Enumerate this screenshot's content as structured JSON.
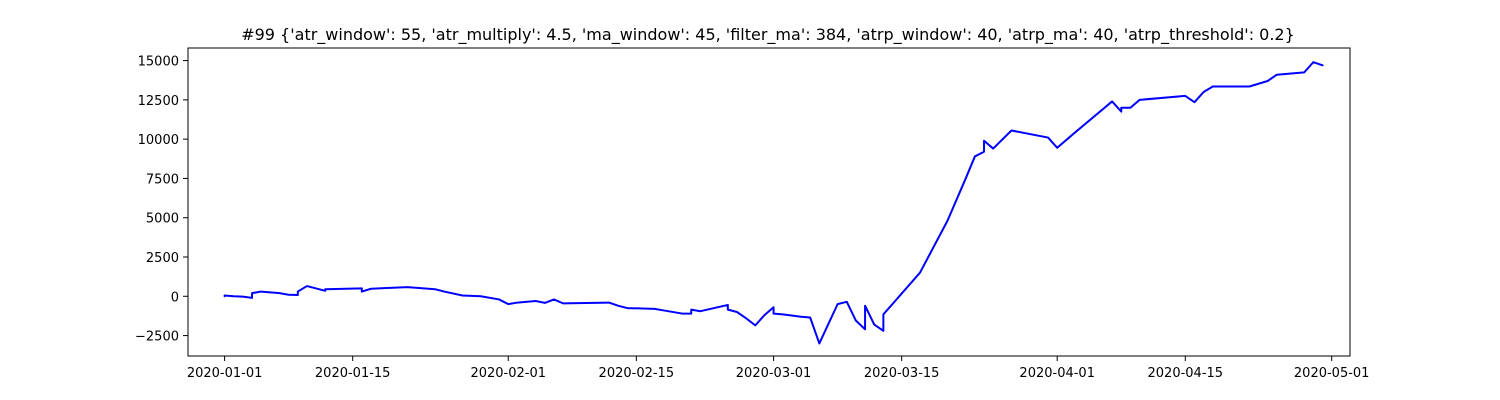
{
  "chart_data": {
    "type": "line",
    "title": "#99 {'atr_window': 55, 'atr_multiply': 4.5, 'ma_window': 45, 'filter_ma': 384, 'atrp_window': 40, 'atrp_ma': 40, 'atrp_threshold': 0.2}",
    "xlabel": "",
    "ylabel": "",
    "xlim": [
      "2019-12-28",
      "2020-05-03"
    ],
    "ylim": [
      -3800,
      15800
    ],
    "grid": false,
    "legend": "none",
    "line_color": "#0000ff",
    "x_ticks": [
      "2020-01-01",
      "2020-01-15",
      "2020-02-01",
      "2020-02-15",
      "2020-03-01",
      "2020-03-15",
      "2020-04-01",
      "2020-04-15",
      "2020-05-01"
    ],
    "y_ticks": [
      -2500,
      0,
      2500,
      5000,
      7500,
      10000,
      12500,
      15000
    ],
    "y_tick_labels": [
      "−2500",
      "0",
      "2500",
      "5000",
      "7500",
      "10000",
      "12500",
      "15000"
    ],
    "series": [
      {
        "points": [
          [
            "2020-01-01",
            0
          ],
          [
            "2020-01-01",
            50
          ],
          [
            "2020-01-02",
            0
          ],
          [
            "2020-01-02",
            0
          ],
          [
            "2020-01-03",
            -20
          ],
          [
            "2020-01-04",
            -100
          ],
          [
            "2020-01-04",
            200
          ],
          [
            "2020-01-05",
            300
          ],
          [
            "2020-01-07",
            200
          ],
          [
            "2020-01-08",
            100
          ],
          [
            "2020-01-09",
            80
          ],
          [
            "2020-01-09",
            300
          ],
          [
            "2020-01-10",
            650
          ],
          [
            "2020-01-11",
            500
          ],
          [
            "2020-01-12",
            350
          ],
          [
            "2020-01-12",
            450
          ],
          [
            "2020-01-16",
            500
          ],
          [
            "2020-01-16",
            300
          ],
          [
            "2020-01-17",
            480
          ],
          [
            "2020-01-21",
            580
          ],
          [
            "2020-01-24",
            450
          ],
          [
            "2020-01-25",
            300
          ],
          [
            "2020-01-27",
            50
          ],
          [
            "2020-01-29",
            0
          ],
          [
            "2020-01-31",
            -200
          ],
          [
            "2020-02-01",
            -500
          ],
          [
            "2020-02-02",
            -400
          ],
          [
            "2020-02-04",
            -300
          ],
          [
            "2020-02-05",
            -420
          ],
          [
            "2020-02-06",
            -200
          ],
          [
            "2020-02-07",
            -450
          ],
          [
            "2020-02-12",
            -400
          ],
          [
            "2020-02-13",
            -600
          ],
          [
            "2020-02-14",
            -750
          ],
          [
            "2020-02-17",
            -800
          ],
          [
            "2020-02-18",
            -900
          ],
          [
            "2020-02-20",
            -1100
          ],
          [
            "2020-02-21",
            -1100
          ],
          [
            "2020-02-21",
            -850
          ],
          [
            "2020-02-22",
            -950
          ],
          [
            "2020-02-25",
            -550
          ],
          [
            "2020-02-25",
            -850
          ],
          [
            "2020-02-26",
            -1000
          ],
          [
            "2020-02-27",
            -1400
          ],
          [
            "2020-02-28",
            -1850
          ],
          [
            "2020-02-29",
            -1200
          ],
          [
            "2020-03-01",
            -700
          ],
          [
            "2020-03-01",
            -1100
          ],
          [
            "2020-03-02",
            -1150
          ],
          [
            "2020-03-04",
            -1300
          ],
          [
            "2020-03-05",
            -1350
          ],
          [
            "2020-03-06",
            -3000
          ],
          [
            "2020-03-08",
            -500
          ],
          [
            "2020-03-09",
            -350
          ],
          [
            "2020-03-10",
            -1550
          ],
          [
            "2020-03-11",
            -2100
          ],
          [
            "2020-03-11",
            -600
          ],
          [
            "2020-03-12",
            -1800
          ],
          [
            "2020-03-13",
            -2200
          ],
          [
            "2020-03-13",
            -1150
          ],
          [
            "2020-03-17",
            1500
          ],
          [
            "2020-03-20",
            4800
          ],
          [
            "2020-03-22",
            7500
          ],
          [
            "2020-03-23",
            8900
          ],
          [
            "2020-03-24",
            9200
          ],
          [
            "2020-03-24",
            9900
          ],
          [
            "2020-03-25",
            9400
          ],
          [
            "2020-03-27",
            10550
          ],
          [
            "2020-03-31",
            10100
          ],
          [
            "2020-04-01",
            9450
          ],
          [
            "2020-04-03",
            10450
          ],
          [
            "2020-04-07",
            12400
          ],
          [
            "2020-04-08",
            11750
          ],
          [
            "2020-04-08",
            12000
          ],
          [
            "2020-04-09",
            12000
          ],
          [
            "2020-04-10",
            12500
          ],
          [
            "2020-04-15",
            12750
          ],
          [
            "2020-04-16",
            12350
          ],
          [
            "2020-04-17",
            13000
          ],
          [
            "2020-04-18",
            13350
          ],
          [
            "2020-04-22",
            13350
          ],
          [
            "2020-04-24",
            13700
          ],
          [
            "2020-04-25",
            14100
          ],
          [
            "2020-04-28",
            14250
          ],
          [
            "2020-04-29",
            14900
          ],
          [
            "2020-04-30",
            14700
          ]
        ]
      }
    ]
  }
}
